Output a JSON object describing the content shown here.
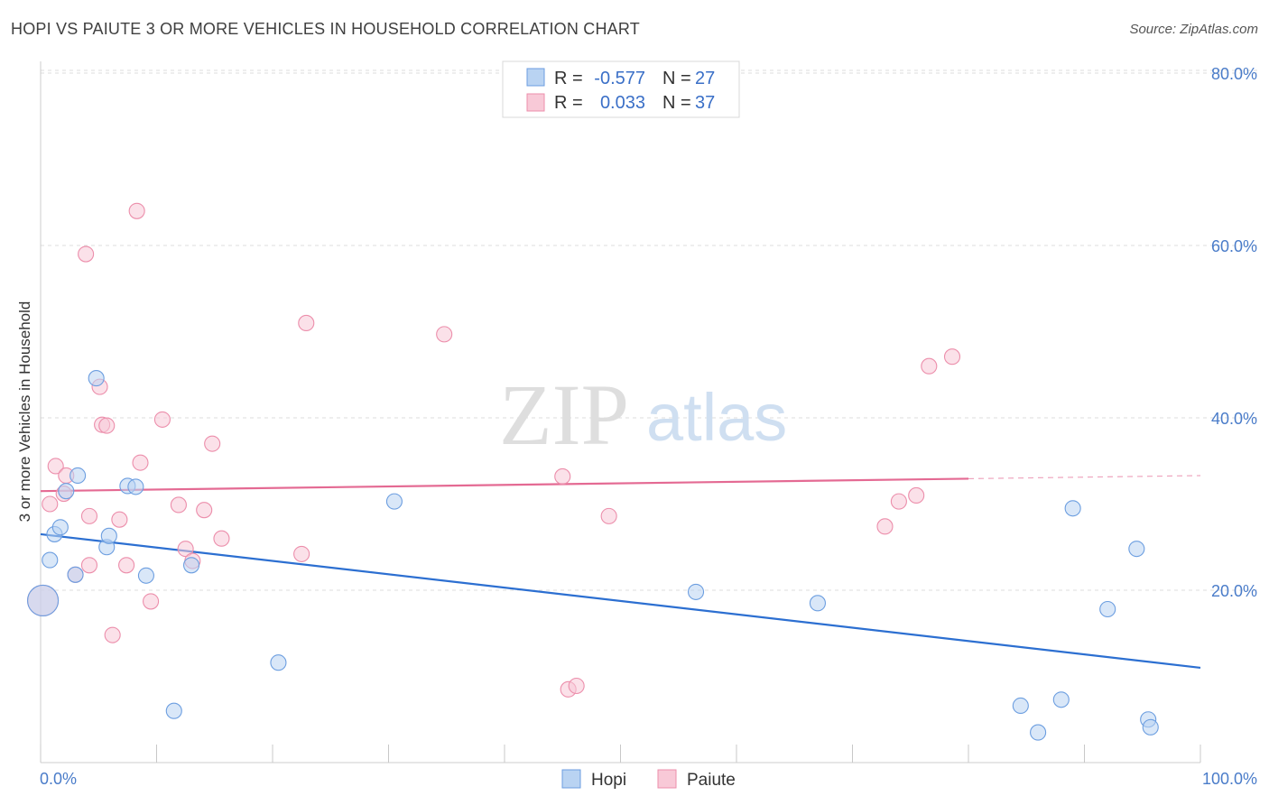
{
  "title": "HOPI VS PAIUTE 3 OR MORE VEHICLES IN HOUSEHOLD CORRELATION CHART",
  "source": "Source: ZipAtlas.com",
  "watermark": {
    "zip": "ZIP",
    "atlas": "atlas"
  },
  "colors": {
    "hopi_fill": "#b9d3f2",
    "hopi_stroke": "#6c9ee0",
    "hopi_line": "#2c6fd1",
    "paiute_fill": "#f8c9d7",
    "paiute_stroke": "#ec8eab",
    "paiute_line": "#e46a93",
    "tick_label": "#4a7cc9",
    "grid": "#dcdcdc"
  },
  "legend": {
    "rows": [
      {
        "r_label": "R =",
        "r_value": "-0.577",
        "n_label": "N =",
        "n_value": "27"
      },
      {
        "r_label": "R =",
        "r_value": "0.033",
        "n_label": "N =",
        "n_value": "37"
      }
    ]
  },
  "chart_data": {
    "type": "scatter",
    "title": "HOPI VS PAIUTE 3 OR MORE VEHICLES IN HOUSEHOLD CORRELATION CHART",
    "xlabel": "",
    "ylabel": "3 or more Vehicles in Household",
    "xlim": [
      0,
      100
    ],
    "ylim": [
      0,
      85
    ],
    "x_tick_labels": [
      "0.0%",
      "100.0%"
    ],
    "y_ticks": [
      20,
      40,
      60,
      80
    ],
    "y_tick_labels": [
      "20.0%",
      "40.0%",
      "60.0%",
      "80.0%"
    ],
    "grid": true,
    "legend_position": "bottom-center",
    "series": [
      {
        "name": "Hopi",
        "trend": {
          "x": [
            0,
            100
          ],
          "y": [
            26.5,
            11.0
          ]
        },
        "points": [
          {
            "x": 0.2,
            "y": 18.8,
            "big": true
          },
          {
            "x": 0.8,
            "y": 23.5
          },
          {
            "x": 1.2,
            "y": 26.5
          },
          {
            "x": 1.7,
            "y": 27.3
          },
          {
            "x": 2.2,
            "y": 31.5
          },
          {
            "x": 3.0,
            "y": 21.8
          },
          {
            "x": 3.2,
            "y": 33.3
          },
          {
            "x": 4.8,
            "y": 44.6
          },
          {
            "x": 5.7,
            "y": 25.0
          },
          {
            "x": 5.9,
            "y": 26.3
          },
          {
            "x": 7.5,
            "y": 32.1
          },
          {
            "x": 8.2,
            "y": 32.0
          },
          {
            "x": 9.1,
            "y": 21.7
          },
          {
            "x": 11.5,
            "y": 6.0
          },
          {
            "x": 13.0,
            "y": 22.9
          },
          {
            "x": 20.5,
            "y": 11.6
          },
          {
            "x": 30.5,
            "y": 30.3
          },
          {
            "x": 56.5,
            "y": 19.8
          },
          {
            "x": 67.0,
            "y": 18.5
          },
          {
            "x": 84.5,
            "y": 6.6
          },
          {
            "x": 86.0,
            "y": 3.5
          },
          {
            "x": 88.0,
            "y": 7.3
          },
          {
            "x": 89.0,
            "y": 29.5
          },
          {
            "x": 92.0,
            "y": 17.8
          },
          {
            "x": 94.5,
            "y": 24.8
          },
          {
            "x": 95.5,
            "y": 5.0
          },
          {
            "x": 95.7,
            "y": 4.1
          }
        ]
      },
      {
        "name": "Paiute",
        "trend": {
          "x": [
            0,
            100
          ],
          "y": [
            31.5,
            33.3
          ]
        },
        "points": [
          {
            "x": 0.2,
            "y": 18.8,
            "big": true
          },
          {
            "x": 0.8,
            "y": 30.0
          },
          {
            "x": 1.3,
            "y": 34.4
          },
          {
            "x": 2.0,
            "y": 31.2
          },
          {
            "x": 2.2,
            "y": 33.3
          },
          {
            "x": 3.0,
            "y": 21.8
          },
          {
            "x": 3.9,
            "y": 59.0
          },
          {
            "x": 4.2,
            "y": 22.9
          },
          {
            "x": 4.2,
            "y": 28.6
          },
          {
            "x": 5.1,
            "y": 43.6
          },
          {
            "x": 5.3,
            "y": 39.2
          },
          {
            "x": 5.7,
            "y": 39.1
          },
          {
            "x": 6.2,
            "y": 14.8
          },
          {
            "x": 6.8,
            "y": 28.2
          },
          {
            "x": 7.4,
            "y": 22.9
          },
          {
            "x": 8.3,
            "y": 64.0
          },
          {
            "x": 8.6,
            "y": 34.8
          },
          {
            "x": 9.5,
            "y": 18.7
          },
          {
            "x": 10.5,
            "y": 39.8
          },
          {
            "x": 11.9,
            "y": 29.9
          },
          {
            "x": 12.5,
            "y": 24.8
          },
          {
            "x": 13.1,
            "y": 23.4
          },
          {
            "x": 14.1,
            "y": 29.3
          },
          {
            "x": 14.8,
            "y": 37.0
          },
          {
            "x": 15.6,
            "y": 26.0
          },
          {
            "x": 22.5,
            "y": 24.2
          },
          {
            "x": 22.9,
            "y": 51.0
          },
          {
            "x": 34.8,
            "y": 49.7
          },
          {
            "x": 45.0,
            "y": 33.2
          },
          {
            "x": 45.5,
            "y": 8.5
          },
          {
            "x": 46.2,
            "y": 8.9
          },
          {
            "x": 49.0,
            "y": 28.6
          },
          {
            "x": 72.8,
            "y": 27.4
          },
          {
            "x": 74.0,
            "y": 30.3
          },
          {
            "x": 75.5,
            "y": 31.0
          },
          {
            "x": 76.6,
            "y": 46.0
          },
          {
            "x": 78.6,
            "y": 47.1
          }
        ]
      }
    ]
  }
}
